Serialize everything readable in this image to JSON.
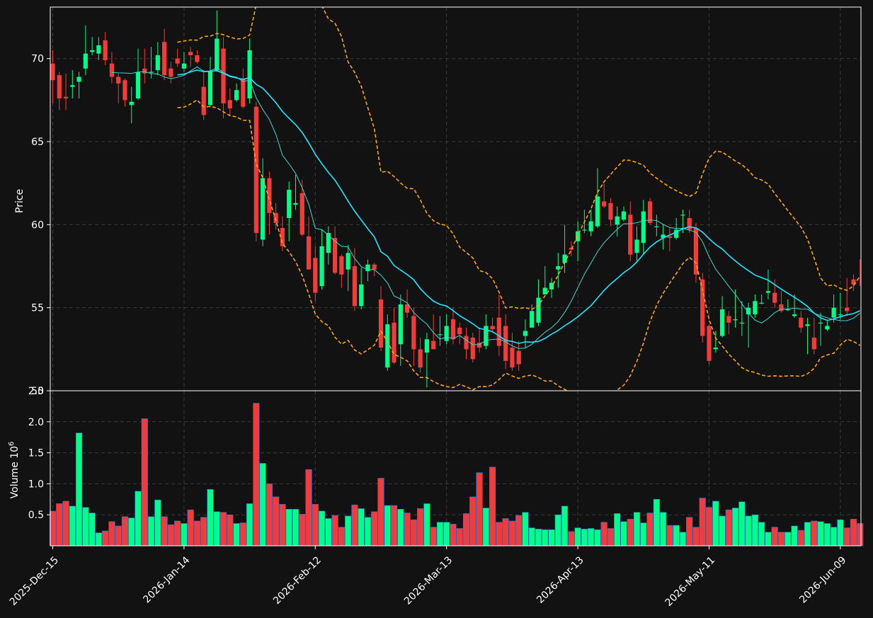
{
  "colors": {
    "background": "#121212",
    "up": "#00ff88",
    "down": "#f23c3c",
    "ma_fast": "#3dd9cf",
    "ma_slow": "#19e6ff",
    "bollinger": "#ffa500",
    "grid": "#3a3a3a",
    "axis": "#ffffff"
  },
  "chart_data": {
    "type": "candlestick",
    "start_date": "2025-12-15",
    "x_tick_labels": [
      "2025-Dec-15",
      "2026-Jan-14",
      "2026-Feb-12",
      "2026-Mar-13",
      "2026-Apr-13",
      "2026-May-11",
      "2026-Jun-09"
    ],
    "x_tick_indices": [
      0,
      20,
      40,
      60,
      80,
      100,
      120
    ],
    "price_panel": {
      "ylabel": "Price",
      "ylim": [
        50,
        73.1
      ],
      "yticks": [
        50,
        55,
        60,
        65,
        70
      ]
    },
    "volume_panel": {
      "ylabel": "Volume  10",
      "ylabel_exponent": "6",
      "ylim": [
        0,
        2.5
      ],
      "yticks": [
        0.5,
        1.0,
        1.5,
        2.0,
        2.5
      ],
      "unit_multiplier": 1000000
    },
    "overlays": [
      "Moving average (fast)",
      "Moving average (slow)",
      "Upper Bollinger band",
      "Lower Bollinger band"
    ],
    "closes": [
      68.7,
      67.6,
      67.6,
      68.4,
      68.9,
      70.3,
      70.5,
      70.8,
      69.9,
      68.9,
      68.5,
      67.5,
      67.4,
      69.2,
      69.1,
      69.2,
      70.2,
      69.0,
      68.9,
      69.7,
      69.7,
      70.2,
      69.8,
      66.6,
      69.2,
      71.2,
      67.3,
      67.0,
      68.1,
      67.1,
      70.5,
      59.5,
      62.8,
      60.7,
      60.1,
      58.7,
      62.1,
      61.3,
      59.4,
      57.3,
      55.9,
      58.7,
      59.5,
      57.1,
      57.0,
      58.3,
      55.1,
      56.4,
      57.6,
      57.3,
      52.6,
      54.0,
      51.7,
      55.2,
      54.7,
      52.5,
      51.4,
      53.1,
      52.5,
      53.4,
      53.9,
      53.1,
      53.4,
      52.5,
      51.9,
      52.6,
      53.9,
      53.7,
      52.7,
      51.8,
      51.4,
      51.6,
      53.6,
      54.8,
      55.6,
      56.2,
      56.5,
      57.5,
      58.2,
      58.5,
      59.6,
      59.7,
      60.2,
      61.7,
      61.1,
      60.3,
      60.5,
      60.8,
      58.2,
      59.1,
      60.8,
      60.1,
      59.9,
      59.4,
      59.2,
      59.7,
      60.6,
      59.7,
      57.0,
      53.3,
      51.8,
      52.6,
      54.9,
      54.1,
      54.3,
      54.1,
      55.0,
      55.4,
      55.3,
      56.0,
      55.3,
      54.8,
      54.9,
      54.6,
      53.8,
      54.0,
      52.5,
      54.1,
      53.9,
      55.0,
      54.6,
      54.8,
      56.4,
      57.6
    ],
    "opens": [
      69.7,
      69.0,
      67.7,
      68.3,
      68.6,
      69.4,
      70.4,
      70.3,
      71.1,
      69.7,
      68.9,
      68.7,
      67.2,
      67.6,
      69.4,
      69.2,
      69.3,
      71.0,
      69.4,
      70.0,
      69.4,
      70.4,
      70.2,
      68.3,
      67.2,
      69.3,
      70.6,
      67.5,
      67.5,
      68.8,
      67.6,
      67.1,
      59.1,
      62.8,
      60.7,
      59.8,
      60.4,
      61.2,
      61.9,
      59.3,
      58.0,
      56.3,
      58.3,
      59.2,
      58.1,
      57.3,
      57.5,
      55.1,
      57.2,
      57.6,
      55.5,
      51.4,
      54.1,
      52.8,
      55.2,
      54.5,
      52.5,
      52.3,
      53.0,
      53.4,
      53.0,
      54.3,
      53.8,
      53.3,
      53.2,
      52.9,
      52.7,
      53.9,
      54.4,
      53.9,
      52.6,
      52.4,
      53.3,
      53.8,
      54.1,
      55.8,
      56.1,
      57.3,
      57.7,
      58.6,
      59.0,
      59.7,
      59.6,
      59.9,
      61.4,
      61.3,
      60.0,
      60.3,
      60.6,
      58.3,
      58.9,
      61.4,
      59.9,
      59.2,
      59.3,
      59.2,
      60.6,
      60.4,
      59.8,
      56.7,
      53.9,
      52.5,
      53.3,
      54.5,
      54.3,
      54.1,
      54.6,
      54.6,
      55.3,
      55.9,
      55.9,
      55.2,
      54.9,
      54.5,
      54.4,
      53.9,
      53.2,
      54.1,
      53.7,
      54.4,
      54.6,
      55.0,
      56.7
    ],
    "highs": [
      70.5,
      69.2,
      69.1,
      69.3,
      69.2,
      72.0,
      71.3,
      71.3,
      71.6,
      70.4,
      69.1,
      68.8,
      68.3,
      70.6,
      70.6,
      70.7,
      71.0,
      71.8,
      69.8,
      70.6,
      70.4,
      70.7,
      70.5,
      69.3,
      70.1,
      72.9,
      71.3,
      68.2,
      68.5,
      69.4,
      71.2,
      67.4,
      64.0,
      63.2,
      61.3,
      60.5,
      62.6,
      63.0,
      62.7,
      60.5,
      58.7,
      59.7,
      59.9,
      59.9,
      58.2,
      58.8,
      58.6,
      57.4,
      57.9,
      57.7,
      56.3,
      54.6,
      55.0,
      55.8,
      56.1,
      55.0,
      53.2,
      53.5,
      54.6,
      54.5,
      54.6,
      55.0,
      54.1,
      53.8,
      53.5,
      53.8,
      54.6,
      54.4,
      55.8,
      54.6,
      53.5,
      53.0,
      54.3,
      55.2,
      56.7,
      57.5,
      56.8,
      58.3,
      60.0,
      59.0,
      60.2,
      60.9,
      60.9,
      63.4,
      62.5,
      61.6,
      61.1,
      61.1,
      61.4,
      59.9,
      61.5,
      61.6,
      60.6,
      60.0,
      59.8,
      60.4,
      60.9,
      60.9,
      60.1,
      57.1,
      54.0,
      53.6,
      55.7,
      54.8,
      56.1,
      55.4,
      55.3,
      55.8,
      55.8,
      57.3,
      56.7,
      56.0,
      55.5,
      55.8,
      54.8,
      54.4,
      54.4,
      54.7,
      54.2,
      55.8,
      55.9,
      56.8,
      57.0,
      57.9
    ],
    "lows": [
      67.3,
      66.9,
      66.9,
      67.6,
      67.6,
      69.0,
      70.2,
      69.9,
      69.6,
      68.5,
      67.3,
      67.1,
      66.1,
      67.5,
      68.5,
      68.8,
      69.0,
      68.7,
      68.5,
      69.5,
      69.2,
      69.5,
      69.7,
      66.3,
      67.1,
      69.2,
      66.4,
      66.6,
      67.4,
      67.0,
      67.3,
      59.0,
      58.7,
      59.4,
      59.7,
      58.4,
      59.0,
      60.9,
      59.3,
      57.3,
      55.4,
      56.1,
      57.6,
      57.0,
      56.2,
      56.0,
      54.8,
      54.9,
      56.6,
      56.9,
      52.4,
      51.2,
      51.6,
      51.5,
      54.4,
      51.5,
      51.1,
      50.2,
      52.5,
      52.7,
      52.8,
      52.8,
      52.8,
      51.9,
      51.7,
      52.3,
      52.5,
      53.5,
      52.1,
      51.3,
      51.2,
      51.2,
      52.6,
      53.8,
      53.9,
      55.9,
      55.6,
      56.2,
      57.1,
      58.1,
      57.8,
      59.5,
      59.3,
      59.8,
      61.0,
      59.9,
      59.3,
      60.2,
      57.8,
      57.7,
      58.2,
      60.0,
      59.3,
      58.5,
      58.4,
      59.1,
      59.5,
      59.5,
      56.5,
      52.9,
      51.6,
      52.3,
      53.2,
      53.4,
      53.8,
      53.3,
      52.6,
      54.4,
      55.2,
      55.5,
      55.0,
      54.7,
      54.8,
      54.4,
      53.5,
      52.2,
      52.2,
      52.7,
      53.6,
      54.1,
      54.3,
      54.5,
      56.0,
      56.3
    ],
    "volumes": [
      0.56,
      0.68,
      0.72,
      0.64,
      1.82,
      0.62,
      0.53,
      0.21,
      0.24,
      0.39,
      0.32,
      0.47,
      0.45,
      0.88,
      2.05,
      0.47,
      0.74,
      0.47,
      0.34,
      0.4,
      0.36,
      0.58,
      0.4,
      0.46,
      0.91,
      0.55,
      0.54,
      0.5,
      0.36,
      0.37,
      0.68,
      2.3,
      1.33,
      1.0,
      0.79,
      0.67,
      0.59,
      0.59,
      0.51,
      1.23,
      0.67,
      0.56,
      0.44,
      0.49,
      0.3,
      0.48,
      0.66,
      0.6,
      0.46,
      0.55,
      1.09,
      0.65,
      0.65,
      0.59,
      0.53,
      0.42,
      0.6,
      0.68,
      0.3,
      0.38,
      0.38,
      0.35,
      0.28,
      0.52,
      0.79,
      1.18,
      0.61,
      1.27,
      0.38,
      0.44,
      0.4,
      0.49,
      0.54,
      0.29,
      0.27,
      0.26,
      0.26,
      0.5,
      0.64,
      0.23,
      0.29,
      0.27,
      0.28,
      0.26,
      0.38,
      0.28,
      0.52,
      0.39,
      0.43,
      0.54,
      0.37,
      0.53,
      0.75,
      0.54,
      0.33,
      0.33,
      0.22,
      0.46,
      0.3,
      0.77,
      0.62,
      0.72,
      0.48,
      0.58,
      0.61,
      0.71,
      0.48,
      0.5,
      0.38,
      0.22,
      0.3,
      0.22,
      0.22,
      0.32,
      0.25,
      0.38,
      0.4,
      0.39,
      0.36,
      0.3,
      0.42,
      0.29,
      0.43,
      0.36
    ]
  }
}
